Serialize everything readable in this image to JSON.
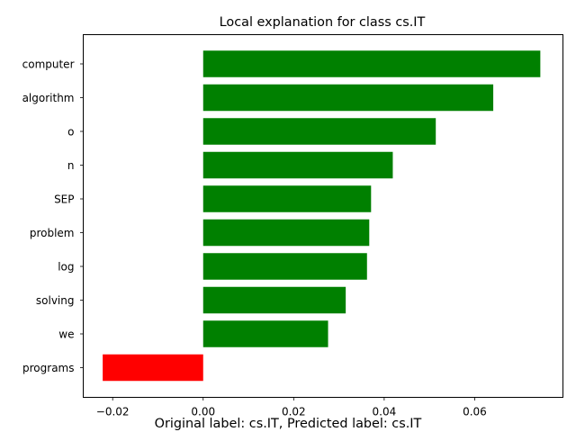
{
  "chart_data": {
    "type": "bar",
    "orientation": "horizontal",
    "title": "Local explanation for class cs.IT",
    "xlabel": "",
    "ylabel": "",
    "categories": [
      "computer",
      "algorithm",
      "o",
      "n",
      "SEP",
      "problem",
      "log",
      "solving",
      "we",
      "programs"
    ],
    "values": [
      0.0745,
      0.0641,
      0.0514,
      0.0419,
      0.0371,
      0.0367,
      0.0362,
      0.0315,
      0.0276,
      -0.0222
    ],
    "xlim": [
      -0.0265,
      0.0795
    ],
    "xticks": [
      -0.02,
      0.0,
      0.02,
      0.04,
      0.06
    ],
    "xtick_labels": [
      "−0.02",
      "0.00",
      "0.02",
      "0.04",
      "0.06"
    ],
    "grid": false,
    "positive_color": "#008000",
    "negative_color": "#ff0000"
  },
  "caption": "Original label: cs.IT, Predicted label: cs.IT"
}
